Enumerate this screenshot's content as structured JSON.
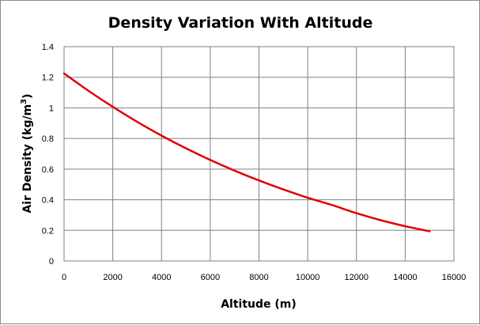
{
  "chart_data": {
    "type": "line",
    "title": "Density Variation With Altitude",
    "xlabel": "Altitude (m)",
    "ylabel_parts": {
      "base": "Air Density (kg/m",
      "sup": "3",
      "end": ")"
    },
    "xlim": [
      0,
      16000
    ],
    "ylim": [
      0,
      1.4
    ],
    "xticks": [
      0,
      2000,
      4000,
      6000,
      8000,
      10000,
      12000,
      14000,
      16000
    ],
    "yticks": [
      0,
      0.2,
      0.4,
      0.6,
      0.8,
      1,
      1.2,
      1.4
    ],
    "grid": true,
    "series_color": "#e00000",
    "series": [
      {
        "name": "Air Density",
        "x": [
          0,
          1000,
          2000,
          3000,
          4000,
          5000,
          6000,
          7000,
          8000,
          9000,
          10000,
          11000,
          12000,
          13000,
          14000,
          15000
        ],
        "y": [
          1.225,
          1.112,
          1.007,
          0.909,
          0.819,
          0.736,
          0.66,
          0.59,
          0.526,
          0.467,
          0.413,
          0.365,
          0.312,
          0.266,
          0.227,
          0.194
        ]
      }
    ]
  }
}
